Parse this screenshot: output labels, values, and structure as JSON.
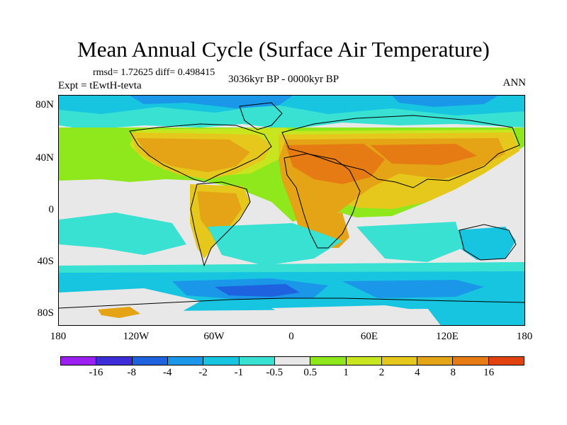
{
  "title": "Mean Annual Cycle (Surface Air Temperature)",
  "stats": "rmsd= 1.72625 diff= 0.498415",
  "experiment": "Expt = tEwtH-tevta",
  "period": "3036kyr BP - 0000kyr BP",
  "season": "ANN",
  "y_axis_labels": [
    "80N",
    "40N",
    "0",
    "40S",
    "80S"
  ],
  "x_axis_labels": [
    "180",
    "120W",
    "60W",
    "0",
    "60E",
    "120E",
    "180"
  ],
  "colorbar": {
    "colors": [
      "#9b1ff0",
      "#3c2dd8",
      "#1e62e0",
      "#1a97e8",
      "#18c5e0",
      "#38e1d2",
      "#e8e8e8",
      "#8ee81c",
      "#c8e61f",
      "#e6c71c",
      "#e4a415",
      "#e57b12",
      "#e2420f"
    ],
    "labels": [
      "-16",
      "-8",
      "-4",
      "-2",
      "-1",
      "-0.5",
      "0.5",
      "1",
      "2",
      "4",
      "8",
      "16"
    ]
  },
  "map_colors": {
    "neutral": "#e8e8e8",
    "cyan": "#38e1d2",
    "light_blue": "#18c5e0",
    "blue": "#1a97e8",
    "deep_blue": "#1e62e0",
    "green": "#8ee81c",
    "yellow_green": "#c8e61f",
    "yellow": "#e6c71c",
    "orange": "#e4a415",
    "dark_orange": "#e57b12",
    "coast": "#000000"
  }
}
